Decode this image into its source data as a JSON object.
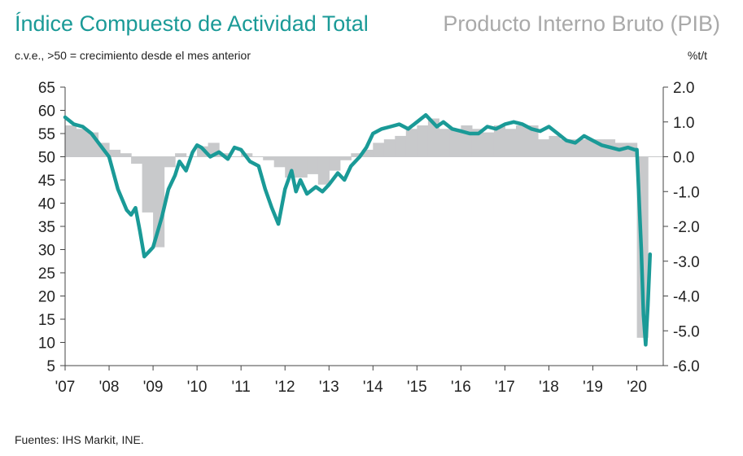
{
  "header": {
    "title_left": "Índice Compuesto de Actividad Total",
    "title_right": "Producto Interno Bruto (PIB)",
    "subtitle": "c.v.e., >50 = crecimiento desde el mes anterior",
    "right_unit": "%t/t"
  },
  "footer": {
    "source": "Fuentes: IHS Markit, INE."
  },
  "colors": {
    "line": "#1a9a97",
    "bars": "#c8c9cb",
    "title_right": "#a9a9a9"
  },
  "chart_data": {
    "type": "line",
    "x_ticks": [
      "'07",
      "'08",
      "'09",
      "'10",
      "'11",
      "'12",
      "'13",
      "'14",
      "'15",
      "'16",
      "'17",
      "'18",
      "'19",
      "'20"
    ],
    "y_left": {
      "ticks": [
        "65",
        "60",
        "55",
        "50",
        "45",
        "40",
        "35",
        "30",
        "25",
        "20",
        "15",
        "10",
        "5"
      ],
      "ylim": [
        5,
        65
      ]
    },
    "y_right": {
      "ticks": [
        "2.0",
        "1.0",
        "0.0",
        "-1.0",
        "-2.0",
        "-3.0",
        "-4.0",
        "-5.0",
        "-6.0"
      ],
      "ylim": [
        -6.0,
        2.0
      ]
    },
    "series": [
      {
        "kind": "bar",
        "axis": "right",
        "quarters_start": 2007.0,
        "values": [
          0.9,
          0.8,
          0.7,
          0.4,
          0.2,
          0.1,
          -0.2,
          -1.6,
          -2.6,
          -0.3,
          0.1,
          0.0,
          0.3,
          0.4,
          0.1,
          0.0,
          0.1,
          0.0,
          -0.1,
          -0.3,
          -0.6,
          -0.6,
          -0.5,
          -0.8,
          -0.4,
          -0.1,
          0.1,
          0.2,
          0.4,
          0.5,
          0.6,
          0.8,
          0.9,
          1.1,
          0.8,
          0.8,
          0.9,
          0.8,
          0.7,
          0.9,
          0.8,
          0.9,
          0.9,
          0.5,
          0.6,
          0.5,
          0.5,
          0.5,
          0.5,
          0.5,
          0.4,
          0.4,
          -5.2
        ]
      },
      {
        "kind": "line",
        "axis": "left",
        "x": [
          2007.0,
          2007.2,
          2007.4,
          2007.6,
          2007.8,
          2008.0,
          2008.2,
          2008.4,
          2008.5,
          2008.6,
          2008.7,
          2008.8,
          2008.9,
          2009.0,
          2009.2,
          2009.35,
          2009.5,
          2009.6,
          2009.75,
          2009.9,
          2010.0,
          2010.1,
          2010.3,
          2010.5,
          2010.7,
          2010.85,
          2011.0,
          2011.2,
          2011.4,
          2011.55,
          2011.7,
          2011.85,
          2012.0,
          2012.15,
          2012.25,
          2012.35,
          2012.5,
          2012.7,
          2012.85,
          2013.0,
          2013.2,
          2013.35,
          2013.5,
          2013.7,
          2013.85,
          2014.0,
          2014.2,
          2014.4,
          2014.6,
          2014.8,
          2015.0,
          2015.2,
          2015.3,
          2015.45,
          2015.6,
          2015.8,
          2016.0,
          2016.2,
          2016.4,
          2016.6,
          2016.8,
          2017.0,
          2017.2,
          2017.4,
          2017.6,
          2017.8,
          2018.0,
          2018.2,
          2018.4,
          2018.6,
          2018.8,
          2019.0,
          2019.2,
          2019.4,
          2019.6,
          2019.8,
          2019.95,
          2020.0,
          2020.1,
          2020.15,
          2020.2,
          2020.25,
          2020.3
        ],
        "values": [
          58.5,
          57.0,
          56.5,
          55.0,
          52.5,
          50.0,
          43.0,
          38.5,
          37.5,
          39.0,
          34.0,
          28.5,
          29.5,
          30.5,
          37.0,
          43.0,
          46.0,
          49.0,
          47.0,
          51.0,
          52.5,
          52.0,
          50.0,
          51.0,
          49.5,
          52.0,
          51.5,
          49.0,
          48.0,
          43.0,
          39.0,
          35.5,
          43.0,
          47.0,
          42.5,
          45.0,
          42.0,
          43.5,
          42.5,
          44.0,
          46.5,
          45.0,
          48.0,
          50.0,
          52.0,
          55.0,
          56.0,
          56.5,
          57.0,
          56.0,
          57.5,
          59.0,
          58.0,
          56.5,
          57.5,
          56.0,
          55.5,
          55.0,
          55.0,
          56.5,
          56.0,
          57.0,
          57.5,
          57.0,
          56.0,
          55.5,
          56.5,
          55.0,
          53.5,
          53.0,
          54.5,
          53.5,
          52.5,
          52.0,
          51.5,
          52.0,
          51.5,
          51.5,
          30.0,
          16.0,
          9.5,
          18.0,
          29.0
        ]
      }
    ]
  }
}
